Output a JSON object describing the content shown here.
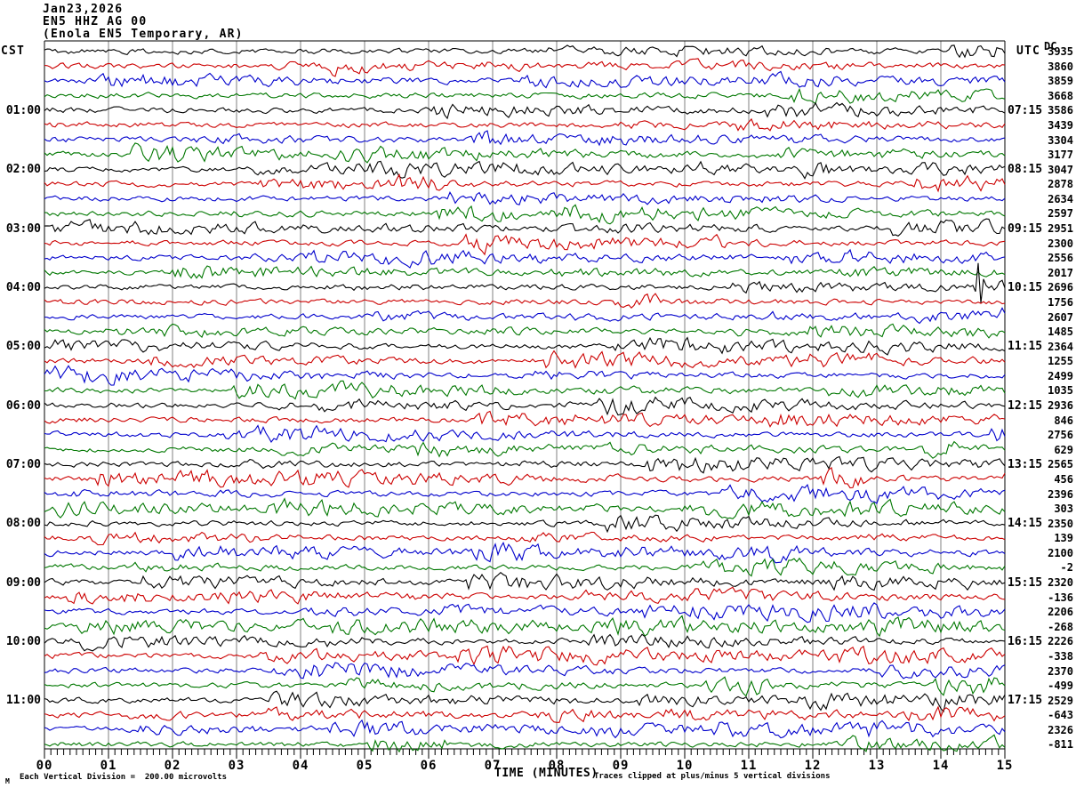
{
  "header": {
    "date": "Jan23,2026",
    "channel": "EN5 HHZ AG 00",
    "station": "(Enola EN5 Temporary, AR)"
  },
  "axis": {
    "left_timezone": "CST",
    "right_timezone": "UTC",
    "dc_column_label": "DC",
    "x_axis_title": "TIME (MINUTES)",
    "footer_scale": "Each Vertical Division =  200.00 microvolts",
    "footer_clip": "Traces clipped at plus/minus 5 vertical divisions",
    "corner_mark": "M"
  },
  "left_hour_labels": [
    "01:00",
    "02:00",
    "03:00",
    "04:00",
    "05:00",
    "06:00",
    "07:00",
    "08:00",
    "09:00",
    "10:00",
    "11:00"
  ],
  "right_hour_labels": [
    "07:15",
    "08:15",
    "09:15",
    "10:15",
    "11:15",
    "12:15",
    "13:15",
    "14:15",
    "15:15",
    "16:15",
    "17:15"
  ],
  "x_tick_labels": [
    "00",
    "01",
    "02",
    "03",
    "04",
    "05",
    "06",
    "07",
    "08",
    "09",
    "10",
    "11",
    "12",
    "13",
    "14",
    "15"
  ],
  "colors": {
    "black": "#000000",
    "red": "#cc0000",
    "blue": "#0000cc",
    "green": "#007700",
    "grid": "#808080"
  },
  "chart_data": {
    "type": "line",
    "subtype": "helicorder-seismogram",
    "title": "EN5 HHZ AG 00 (Enola EN5 Temporary, AR) Jan23,2026",
    "xlabel": "TIME (MINUTES)",
    "x_range_minutes": [
      0,
      15
    ],
    "minor_ticks_per_minute": 10,
    "row_count": 48,
    "traces_per_hour": 4,
    "color_cycle": [
      "black",
      "red",
      "blue",
      "green"
    ],
    "left_axis_hours_cst": [
      "01:00",
      "02:00",
      "03:00",
      "04:00",
      "05:00",
      "06:00",
      "07:00",
      "08:00",
      "09:00",
      "10:00",
      "11:00"
    ],
    "right_axis_hours_utc": [
      "07:15",
      "08:15",
      "09:15",
      "10:15",
      "11:15",
      "12:15",
      "13:15",
      "14:15",
      "15:15",
      "16:15",
      "17:15"
    ],
    "dc_offsets": [
      3935,
      3860,
      3859,
      3668,
      3586,
      3439,
      3304,
      3177,
      3047,
      2878,
      2634,
      2597,
      2951,
      2300,
      2556,
      2017,
      2696,
      1756,
      2607,
      1485,
      2364,
      1255,
      2499,
      1035,
      2936,
      846,
      2756,
      629,
      2565,
      456,
      2396,
      303,
      2350,
      139,
      2100,
      -2,
      2320,
      -136,
      2206,
      -268,
      2226,
      -338,
      2370,
      -499,
      2529,
      -643,
      2326,
      -811
    ],
    "scale_note": "Each Vertical Division =  200.00 microvolts",
    "clip_note": "Traces clipped at plus/minus 5 vertical divisions",
    "waveform_character": "continuous ambient microseism noise, peak-to-peak about one vertical division",
    "event": {
      "row_index": 16,
      "trace_time_cst": "04:00",
      "trace_time_utc": "10:15",
      "minute": 14.6,
      "description": "impulsive spike on black trace near right edge"
    }
  }
}
